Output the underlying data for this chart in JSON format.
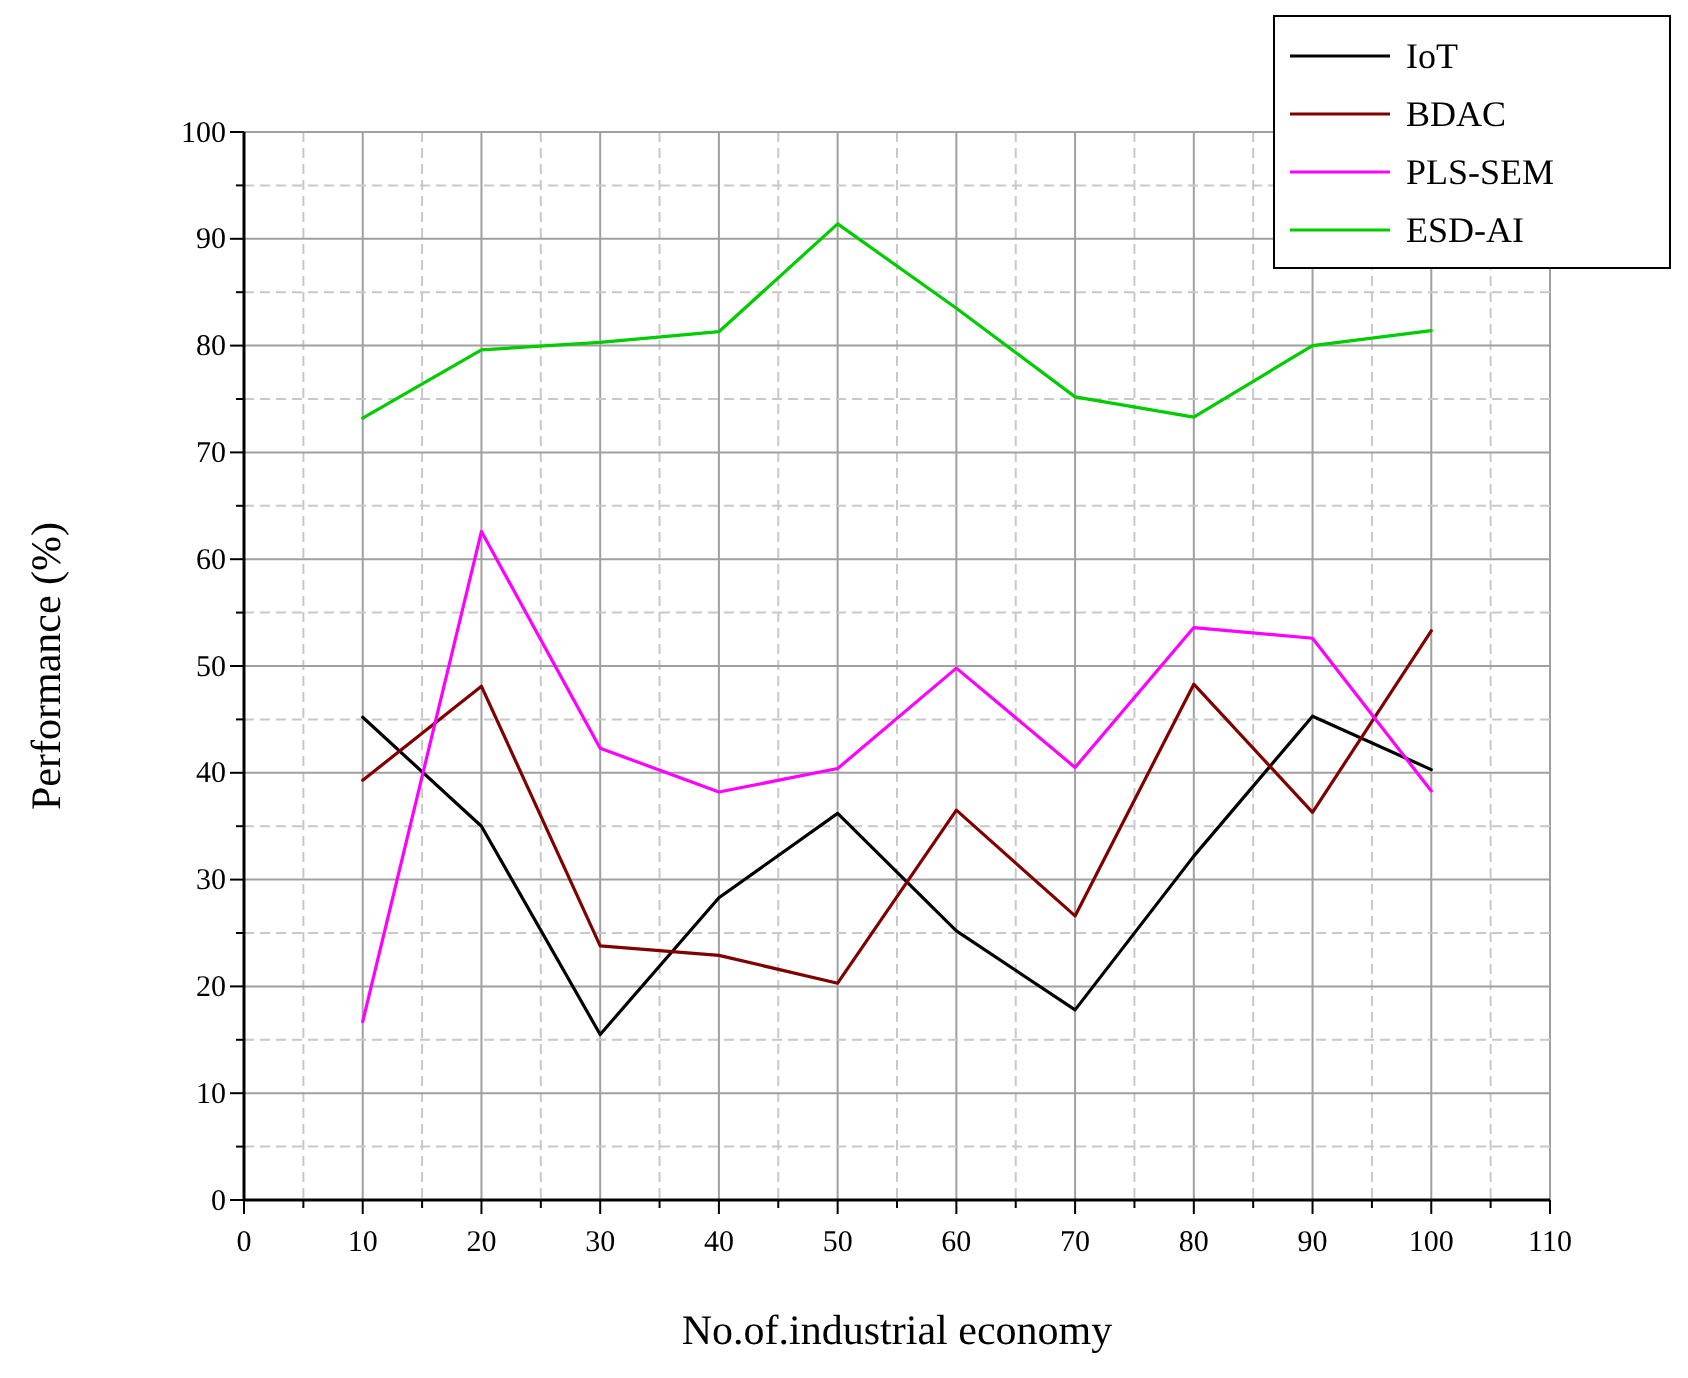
{
  "chart_data": {
    "type": "line",
    "xlabel": "No.of.industrial economy",
    "ylabel": "Performance (%)",
    "x": [
      10,
      20,
      30,
      40,
      50,
      60,
      70,
      80,
      90,
      100
    ],
    "series": [
      {
        "name": "IoT",
        "color": "#000000",
        "values": [
          45.2,
          35,
          15.5,
          28.3,
          36.2,
          25.2,
          17.8,
          32.2,
          45.3,
          40.3
        ]
      },
      {
        "name": "BDAC",
        "color": "#800000",
        "values": [
          39.3,
          48.1,
          23.8,
          22.9,
          20.3,
          36.5,
          26.6,
          48.3,
          36.3,
          53.3
        ]
      },
      {
        "name": "PLS-SEM",
        "color": "#ff00ff",
        "values": [
          16.7,
          62.6,
          42.3,
          38.2,
          40.4,
          49.8,
          40.5,
          53.6,
          52.6,
          38.3
        ]
      },
      {
        "name": "ESD-AI",
        "color": "#00cc00",
        "values": [
          73.2,
          79.6,
          80.3,
          81.3,
          91.4,
          83.5,
          75.2,
          73.3,
          80,
          81.4
        ]
      }
    ],
    "xlim": [
      0,
      110
    ],
    "xticks": [
      0,
      {
        "value": 5,
        "label": null
      },
      10,
      {
        "value": 15,
        "label": null
      },
      20,
      {
        "value": 25,
        "label": null
      },
      30,
      {
        "value": 35,
        "label": null
      },
      40,
      {
        "value": 45,
        "label": null
      },
      50,
      {
        "value": 55,
        "label": null
      },
      60,
      {
        "value": 65,
        "label": null
      },
      70,
      {
        "value": 75,
        "label": null
      },
      80,
      {
        "value": 85,
        "label": null
      },
      90,
      {
        "value": 95,
        "label": null
      },
      100,
      {
        "value": 105,
        "label": null
      },
      110
    ],
    "ylim": [
      0,
      100
    ],
    "yticks": [
      0,
      {
        "value": 5,
        "label": null
      },
      10,
      {
        "value": 15,
        "label": null
      },
      20,
      {
        "value": 25,
        "label": null
      },
      30,
      {
        "value": 35,
        "label": null
      },
      40,
      {
        "value": 45,
        "label": null
      },
      50,
      {
        "value": 55,
        "label": null
      },
      60,
      {
        "value": 65,
        "label": null
      },
      70,
      {
        "value": 75,
        "label": null
      },
      80,
      {
        "value": 85,
        "label": null
      },
      90,
      {
        "value": 95,
        "label": null
      },
      100
    ],
    "grid": true,
    "legend": "top right",
    "marker": "none",
    "line_style": "solid"
  }
}
